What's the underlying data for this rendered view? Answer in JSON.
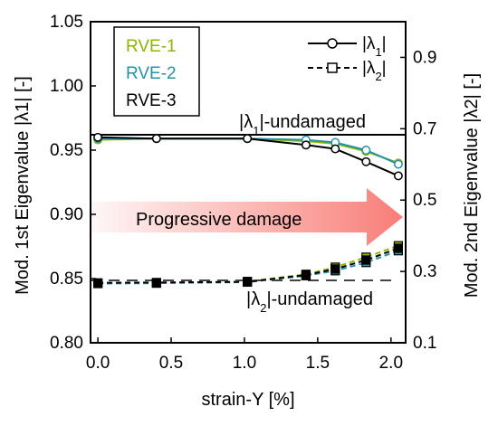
{
  "chart_data": {
    "type": "line",
    "x_label": "strain-Y [%]",
    "y_left_label": "Mod. 1st Eigenvalue |λ1| [-]",
    "y_right_label": "Mod. 2nd Eigenvalue |λ2| [-]",
    "x_ticks": [
      "0.0",
      "0.5",
      "1.0",
      "1.5",
      "2.0"
    ],
    "y_left_ticks": [
      "0.80",
      "0.85",
      "0.90",
      "0.95",
      "1.00",
      "1.05"
    ],
    "y_right_ticks": [
      "0.1",
      "0.3",
      "0.5",
      "0.7",
      "0.9"
    ],
    "xlim": [
      -0.05,
      2.1
    ],
    "ylim_left": [
      0.8,
      1.05
    ],
    "ylim_right": [
      0.1,
      1.0
    ],
    "lambda1_undamaged": 0.962,
    "lambda2_undamaged": 0.275,
    "annotations": {
      "lambda1_undamaged": "|λ1|-undamaged",
      "lambda2_undamaged": "|λ2|-undamaged",
      "arrow": "Progressive damage"
    },
    "legend_rve": [
      {
        "name": "RVE-1",
        "color": "#8db600"
      },
      {
        "name": "RVE-2",
        "color": "#2593a6"
      },
      {
        "name": "RVE-3",
        "color": "#000000"
      }
    ],
    "legend_markers": [
      {
        "label": "|λ1|",
        "marker": "circle",
        "dash": "solid"
      },
      {
        "label": "|λ2|",
        "marker": "square",
        "dash": "dashed"
      }
    ],
    "legend_position": "top-right",
    "x": [
      0.0,
      0.4,
      1.02,
      1.42,
      1.62,
      1.83,
      2.05
    ],
    "series": [
      {
        "name": "RVE-1",
        "quantity": "lambda1",
        "color": "#8db600",
        "values": [
          0.958,
          0.959,
          0.959,
          0.957,
          0.955,
          0.949,
          0.94
        ]
      },
      {
        "name": "RVE-2",
        "quantity": "lambda1",
        "color": "#2593a6",
        "values": [
          0.959,
          0.959,
          0.959,
          0.958,
          0.956,
          0.95,
          0.939
        ]
      },
      {
        "name": "RVE-3",
        "quantity": "lambda1",
        "color": "#000000",
        "values": [
          0.96,
          0.959,
          0.959,
          0.954,
          0.951,
          0.941,
          0.93
        ]
      },
      {
        "name": "RVE-1",
        "quantity": "lambda2",
        "color": "#8db600",
        "values": [
          0.267,
          0.268,
          0.272,
          0.292,
          0.312,
          0.34,
          0.372
        ]
      },
      {
        "name": "RVE-2",
        "quantity": "lambda2",
        "color": "#2593a6",
        "values": [
          0.266,
          0.267,
          0.27,
          0.288,
          0.302,
          0.325,
          0.358
        ]
      },
      {
        "name": "RVE-3",
        "quantity": "lambda2",
        "color": "#000000",
        "values": [
          0.268,
          0.269,
          0.271,
          0.29,
          0.307,
          0.332,
          0.365
        ]
      }
    ]
  }
}
